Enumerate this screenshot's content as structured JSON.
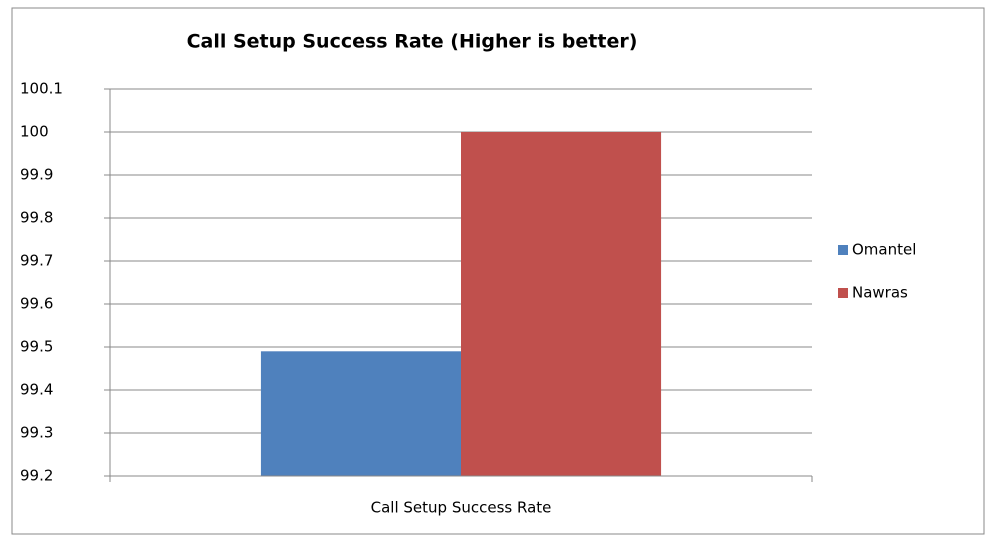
{
  "chart_data": {
    "type": "bar",
    "title": "Call Setup Success Rate (Higher is better)",
    "categories": [
      "Call Setup Success Rate"
    ],
    "series": [
      {
        "name": "Omantel",
        "color": "#4f81bd",
        "values": [
          99.49
        ]
      },
      {
        "name": "Nawras",
        "color": "#c0504d",
        "values": [
          100
        ]
      }
    ],
    "ylim": [
      99.2,
      100.1
    ],
    "yticks": [
      99.2,
      99.3,
      99.4,
      99.5,
      99.6,
      99.7,
      99.8,
      99.9,
      100,
      100.1
    ],
    "grid": true,
    "legend": "right"
  }
}
